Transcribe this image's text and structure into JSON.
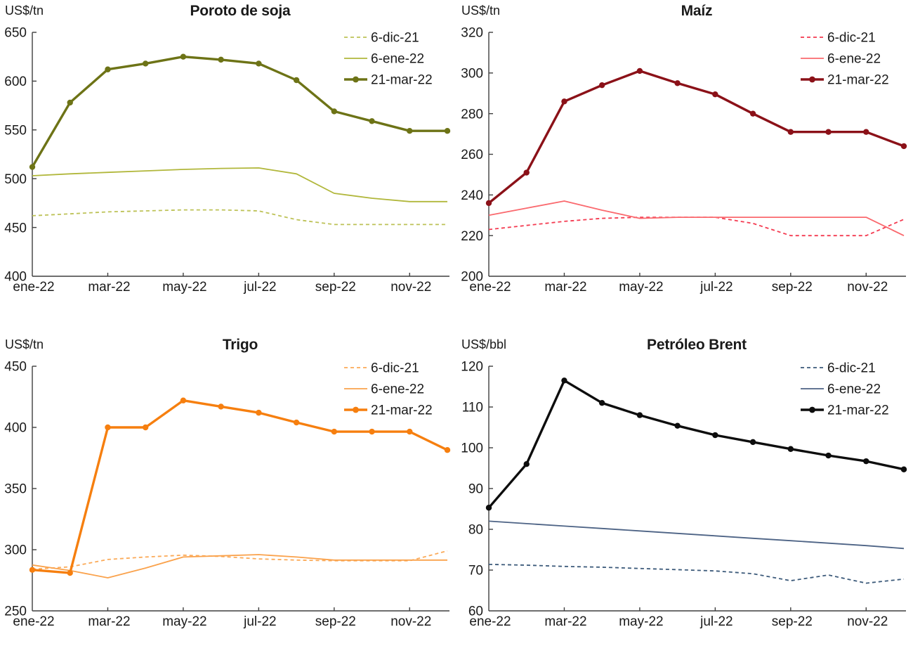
{
  "page": {
    "background": "#ffffff"
  },
  "chart_data": [
    {
      "type": "line",
      "title": "Poroto de soja",
      "unit_label": "US$/tn",
      "x": [
        "ene-22",
        "feb-22",
        "mar-22",
        "abr-22",
        "may-22",
        "jun-22",
        "jul-22",
        "ago-22",
        "sep-22",
        "oct-22",
        "nov-22",
        "dic-22"
      ],
      "x_tick_labels": [
        "ene-22",
        "mar-22",
        "may-22",
        "jul-22",
        "sep-22",
        "nov-22"
      ],
      "ylim": [
        400,
        650
      ],
      "yticks": [
        400,
        450,
        500,
        550,
        600,
        650
      ],
      "grid": false,
      "legend_position": "top-right",
      "series": [
        {
          "name": "6-dic-21",
          "style": "dashed",
          "color": "#bdc257",
          "values": [
            462,
            464,
            466,
            467,
            468,
            468,
            467,
            458,
            453,
            453,
            453,
            453
          ]
        },
        {
          "name": "6-ene-22",
          "style": "solid",
          "color": "#b1b73b",
          "values": [
            503,
            505,
            506.5,
            508,
            509.5,
            510.5,
            511,
            505,
            485,
            480,
            476.5,
            476.5
          ]
        },
        {
          "name": "21-mar-22",
          "style": "bold-markers",
          "color": "#6d7316",
          "values": [
            512,
            578,
            612,
            618,
            625,
            622,
            618,
            601,
            569,
            559,
            549,
            549
          ]
        }
      ]
    },
    {
      "type": "line",
      "title": "Maíz",
      "unit_label": "US$/tn",
      "x": [
        "ene-22",
        "feb-22",
        "mar-22",
        "abr-22",
        "may-22",
        "jun-22",
        "jul-22",
        "ago-22",
        "sep-22",
        "oct-22",
        "nov-22",
        "dic-22"
      ],
      "x_tick_labels": [
        "ene-22",
        "mar-22",
        "may-22",
        "jul-22",
        "sep-22",
        "nov-22"
      ],
      "ylim": [
        200,
        320
      ],
      "yticks": [
        200,
        220,
        240,
        260,
        280,
        300,
        320
      ],
      "grid": false,
      "legend_position": "top-right",
      "series": [
        {
          "name": "6-dic-21",
          "style": "dashed",
          "color": "#f43a50",
          "values": [
            223,
            225,
            227,
            228.5,
            229,
            229,
            229,
            226,
            220,
            220,
            220,
            228
          ]
        },
        {
          "name": "6-ene-22",
          "style": "solid",
          "color": "#fa696e",
          "values": [
            230,
            233.5,
            237,
            232.5,
            228.5,
            229,
            229,
            229,
            229,
            229,
            229,
            220
          ]
        },
        {
          "name": "21-mar-22",
          "style": "bold-markers",
          "color": "#8b1118",
          "values": [
            236,
            251,
            286,
            294,
            301,
            295,
            289.5,
            280,
            271,
            271,
            271,
            264
          ]
        }
      ]
    },
    {
      "type": "line",
      "title": "Trigo",
      "unit_label": "US$/tn",
      "x": [
        "ene-22",
        "feb-22",
        "mar-22",
        "abr-22",
        "may-22",
        "jun-22",
        "jul-22",
        "ago-22",
        "sep-22",
        "oct-22",
        "nov-22",
        "dic-22"
      ],
      "x_tick_labels": [
        "ene-22",
        "mar-22",
        "may-22",
        "jul-22",
        "sep-22",
        "nov-22"
      ],
      "ylim": [
        250,
        450
      ],
      "yticks": [
        250,
        300,
        350,
        400,
        450
      ],
      "grid": false,
      "legend_position": "top-right",
      "series": [
        {
          "name": "6-dic-21",
          "style": "dashed",
          "color": "#fbaa58",
          "values": [
            284,
            286,
            292,
            294,
            295.5,
            294.5,
            292.5,
            291.5,
            291,
            291,
            291,
            299
          ]
        },
        {
          "name": "6-ene-22",
          "style": "solid",
          "color": "#faa24c",
          "values": [
            287.5,
            283,
            277,
            285,
            294,
            295,
            296,
            294,
            291.5,
            291.5,
            291.5,
            291.5
          ]
        },
        {
          "name": "21-mar-22",
          "style": "bold-markers",
          "color": "#f67f0f",
          "values": [
            283.5,
            281,
            400,
            400,
            422,
            417,
            412,
            404,
            396.5,
            396.5,
            396.5,
            381.5
          ]
        }
      ]
    },
    {
      "type": "line",
      "title": "Petróleo Brent",
      "unit_label": "US$/bbl",
      "x": [
        "ene-22",
        "feb-22",
        "mar-22",
        "abr-22",
        "may-22",
        "jun-22",
        "jul-22",
        "ago-22",
        "sep-22",
        "oct-22",
        "nov-22",
        "dic-22"
      ],
      "x_tick_labels": [
        "ene-22",
        "mar-22",
        "may-22",
        "jul-22",
        "sep-22",
        "nov-22"
      ],
      "ylim": [
        60,
        120
      ],
      "yticks": [
        60,
        70,
        80,
        90,
        100,
        110,
        120
      ],
      "grid": false,
      "legend_position": "top-right",
      "series": [
        {
          "name": "6-dic-21",
          "style": "dashed",
          "color": "#3c5a7a",
          "values": [
            71.4,
            71.2,
            70.9,
            70.7,
            70.4,
            70.1,
            69.8,
            69.1,
            67.4,
            68.8,
            66.8,
            67.8
          ]
        },
        {
          "name": "6-ene-22",
          "style": "solid",
          "color": "#4d6385",
          "values": [
            82,
            81.4,
            80.8,
            80.2,
            79.6,
            79,
            78.4,
            77.8,
            77.2,
            76.6,
            76,
            75.3
          ]
        },
        {
          "name": "21-mar-22",
          "style": "bold-markers",
          "color": "#0d0d0d",
          "values": [
            85.3,
            96,
            116.5,
            111,
            108,
            105.4,
            103.1,
            101.4,
            99.7,
            98.1,
            96.7,
            94.7
          ]
        }
      ]
    }
  ]
}
